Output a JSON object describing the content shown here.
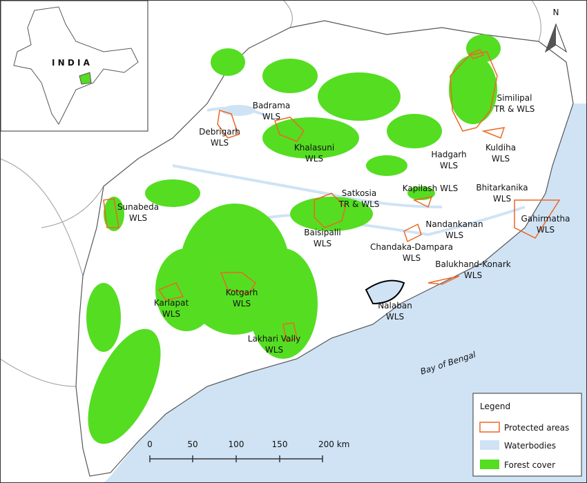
{
  "inset": {
    "label": "I N D I A"
  },
  "north_arrow": {
    "label": "N"
  },
  "labels": [
    {
      "lines": [
        "Debrigarh",
        "WLS"
      ]
    },
    {
      "lines": [
        "Badrama",
        "WLS"
      ]
    },
    {
      "lines": [
        "Khalasuni",
        "WLS"
      ]
    },
    {
      "lines": [
        "Similipal",
        "TR & WLS"
      ]
    },
    {
      "lines": [
        "Hadgarh",
        "WLS"
      ]
    },
    {
      "lines": [
        "Kuldiha",
        "WLS"
      ]
    },
    {
      "lines": [
        "Sunabeda",
        "WLS"
      ]
    },
    {
      "lines": [
        "Satkosia",
        "TR & WLS"
      ]
    },
    {
      "lines": [
        "Kapilash WLS"
      ]
    },
    {
      "lines": [
        "Bhitarkanika",
        "WLS"
      ]
    },
    {
      "lines": [
        "Gahirmatha",
        "WLS"
      ]
    },
    {
      "lines": [
        "Baisipalli",
        "WLS"
      ]
    },
    {
      "lines": [
        "Nandankanan",
        "WLS"
      ]
    },
    {
      "lines": [
        "Chandaka-Dampara",
        "WLS"
      ]
    },
    {
      "lines": [
        "Balukhand-Konark",
        "WLS"
      ]
    },
    {
      "lines": [
        "Karlapat",
        "WLS"
      ]
    },
    {
      "lines": [
        "Kotgarh",
        "WLS"
      ]
    },
    {
      "lines": [
        "Nalaban",
        "WLS"
      ]
    },
    {
      "lines": [
        "Lakhari Vally",
        "WLS"
      ]
    }
  ],
  "sea_label": "Bay of Bengal",
  "legend": {
    "title": "Legend",
    "items": [
      "Protected areas",
      "Waterbodies",
      "Forest cover"
    ]
  },
  "scale_bar": {
    "labels": [
      "0",
      "50",
      "100",
      "150",
      "200 km"
    ]
  }
}
